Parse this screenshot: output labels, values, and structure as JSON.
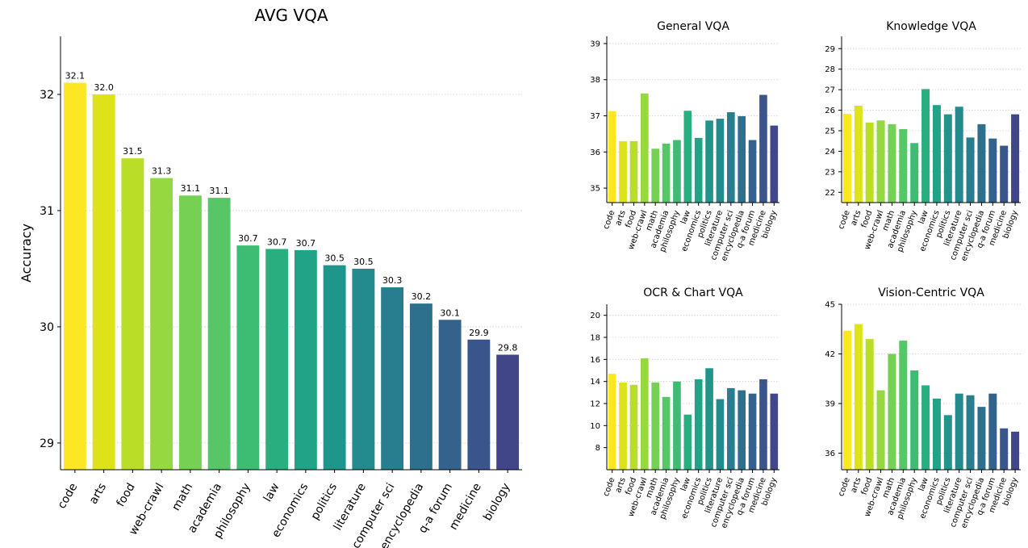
{
  "bar_colors": [
    "#fde725",
    "#dde318",
    "#bade28",
    "#95d840",
    "#75d054",
    "#56c667",
    "#3dbc74",
    "#29af7f",
    "#20a386",
    "#1f968b",
    "#238a8d",
    "#287d8e",
    "#2d708e",
    "#33638d",
    "#39558c",
    "#404688"
  ],
  "gridline_color": "#cccccc",
  "chart_data": [
    {
      "type": "bar",
      "title": "AVG VQA",
      "ylabel": "Accuracy",
      "categories": [
        "code",
        "arts",
        "food",
        "web-crawl",
        "math",
        "academia",
        "philosophy",
        "law",
        "economics",
        "politics",
        "literature",
        "computer sci",
        "encyclopedia",
        "q-a forum",
        "medicine",
        "biology"
      ],
      "values": [
        32.1,
        32.0,
        31.45,
        31.28,
        31.13,
        31.11,
        30.7,
        30.67,
        30.66,
        30.53,
        30.5,
        30.34,
        30.2,
        30.06,
        29.89,
        29.76
      ],
      "data_labels": [
        "32.1",
        "32.0",
        "31.5",
        "31.3",
        "31.1",
        "31.1",
        "30.7",
        "30.7",
        "30.7",
        "30.5",
        "30.5",
        "30.3",
        "30.2",
        "30.1",
        "29.9",
        "29.8"
      ],
      "ylim": [
        28.77,
        32.5
      ],
      "yticks": [
        29,
        30,
        31,
        32
      ],
      "ytick_labels": [
        "29",
        "30",
        "31",
        "32"
      ],
      "grid": true
    },
    {
      "type": "bar",
      "title": "General VQA",
      "categories": [
        "code",
        "arts",
        "food",
        "web-crawl",
        "math",
        "academia",
        "philosophy",
        "law",
        "economics",
        "politics",
        "literature",
        "computer sci",
        "encyclopedia",
        "q-a forum",
        "medicine",
        "biology"
      ],
      "values": [
        37.13,
        36.3,
        36.3,
        37.62,
        36.09,
        36.23,
        36.33,
        37.14,
        36.39,
        36.87,
        36.92,
        37.1,
        36.99,
        36.33,
        37.58,
        36.73
      ],
      "ylim": [
        34.6,
        39.2
      ],
      "yticks": [
        35,
        36,
        37,
        38,
        39
      ],
      "ytick_labels": [
        "35",
        "36",
        "37",
        "38",
        "39"
      ],
      "grid": true
    },
    {
      "type": "bar",
      "title": "Knowledge VQA",
      "categories": [
        "code",
        "arts",
        "food",
        "web-crawl",
        "math",
        "academia",
        "philosophy",
        "law",
        "economics",
        "politics",
        "literature",
        "computer sci",
        "encyclopedia",
        "q-a forum",
        "medicine",
        "biology"
      ],
      "values": [
        25.82,
        26.22,
        25.4,
        25.5,
        25.32,
        25.08,
        24.4,
        27.03,
        26.25,
        25.8,
        26.17,
        24.67,
        25.32,
        24.62,
        24.27,
        25.8
      ],
      "ylim": [
        21.5,
        29.6
      ],
      "yticks": [
        22,
        23,
        24,
        25,
        26,
        27,
        28,
        29
      ],
      "ytick_labels": [
        "22",
        "23",
        "24",
        "25",
        "26",
        "27",
        "28",
        "29"
      ],
      "grid": true
    },
    {
      "type": "bar",
      "title": "OCR & Chart VQA",
      "categories": [
        "code",
        "arts",
        "food",
        "web-crawl",
        "math",
        "academia",
        "philosophy",
        "law",
        "economics",
        "politics",
        "literature",
        "computer sci",
        "encyclopedia",
        "q-a forum",
        "medicine",
        "biology"
      ],
      "values": [
        14.7,
        13.9,
        13.7,
        16.1,
        13.9,
        12.6,
        14.0,
        11.0,
        14.2,
        15.2,
        12.4,
        13.4,
        13.2,
        12.9,
        14.2,
        12.9
      ],
      "ylim": [
        6,
        21
      ],
      "yticks": [
        8,
        10,
        12,
        14,
        16,
        18,
        20
      ],
      "ytick_labels": [
        "8",
        "10",
        "12",
        "14",
        "16",
        "18",
        "20"
      ],
      "grid": true
    },
    {
      "type": "bar",
      "title": "Vision-Centric VQA",
      "categories": [
        "code",
        "arts",
        "food",
        "web-crawl",
        "math",
        "academia",
        "philosophy",
        "law",
        "economics",
        "politics",
        "literature",
        "computer sci",
        "encyclopedia",
        "q-a forum",
        "medicine",
        "biology"
      ],
      "values": [
        43.4,
        43.8,
        42.9,
        39.8,
        42.0,
        42.8,
        41.0,
        40.1,
        39.3,
        38.3,
        39.6,
        39.5,
        38.8,
        39.6,
        37.5,
        37.3
      ],
      "ylim": [
        35,
        45
      ],
      "yticks": [
        36,
        39,
        42,
        45
      ],
      "ytick_labels": [
        "36",
        "39",
        "42",
        "45"
      ],
      "grid": true
    }
  ]
}
